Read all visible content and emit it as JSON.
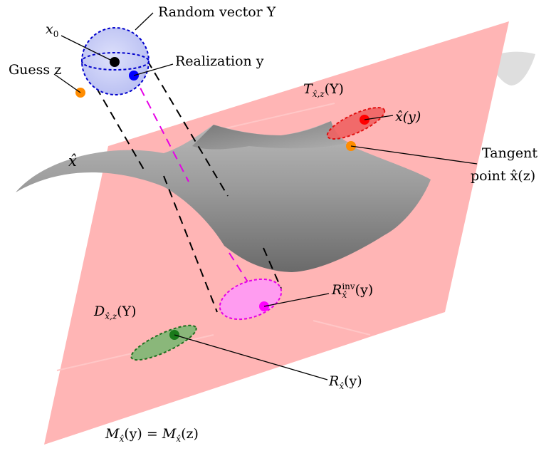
{
  "labels": {
    "x0": {
      "base": "x",
      "sub": "0"
    },
    "random_vector": "Random vector Y",
    "guess": "Guess z",
    "realization": "Realization y",
    "x_hat": "x̂",
    "tangent_set": {
      "base": "T",
      "sub": "x̂,z",
      "arg": "(Y)"
    },
    "x_hat_y": "x̂(y)",
    "tangent_point_line1": "Tangent",
    "tangent_point_line2": "point x̂(z)",
    "r_inv": {
      "base": "R",
      "sup": "inv",
      "sub": "x̂",
      "arg": "(y)"
    },
    "d_set": {
      "base": "D",
      "sub": "x̂,z",
      "arg": "(Y)"
    },
    "r_set": {
      "base": "R",
      "sub": "x̂",
      "arg": "(y)"
    },
    "manifold_eq": {
      "lhs_base": "M",
      "lhs_sub": "x̂",
      "lhs_arg": "(y)",
      "eq": "=",
      "rhs_base": "M",
      "rhs_sub": "x̂",
      "rhs_arg": "(z)"
    }
  },
  "colors": {
    "plane": "#ffb5b5",
    "sphere_fill": "#c8cdf5",
    "sphere_stroke": "#0000cc",
    "point_x0": "#000000",
    "point_y": "#0000ff",
    "point_guess": "#ff8c00",
    "ellipse_red_fill": "#f06262",
    "ellipse_red_stroke": "#e00000",
    "point_red": "#ff0000",
    "ellipse_magenta_fill": "#ff9cf0",
    "ellipse_magenta_stroke": "#e600e6",
    "point_magenta": "#ff00ff",
    "ellipse_green_fill": "#8ab77a",
    "ellipse_green_stroke": "#1f6f1f",
    "point_green": "#1a7a1a",
    "surface": "#8f8f8f"
  }
}
